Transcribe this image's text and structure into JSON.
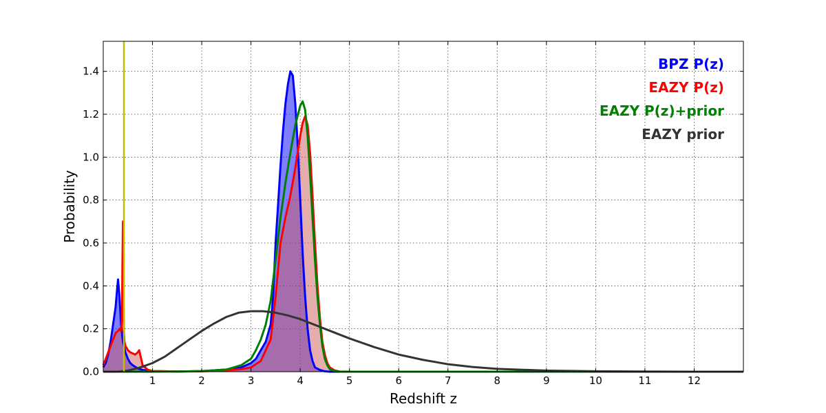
{
  "chart_data": {
    "type": "line",
    "xlabel": "Redshift z",
    "ylabel": "Probability",
    "xlim": [
      0,
      13
    ],
    "ylim": [
      0,
      1.54
    ],
    "grid": true,
    "legend_placement": "top-right",
    "xticks": [
      1,
      2,
      3,
      4,
      5,
      6,
      7,
      8,
      9,
      10,
      11,
      12
    ],
    "xtick_labels": [
      "1",
      "2",
      "3",
      "4",
      "5",
      "6",
      "7",
      "8",
      "9",
      "10",
      "11",
      "12"
    ],
    "yticks": [
      0.0,
      0.2,
      0.4,
      0.6,
      0.8,
      1.0,
      1.2,
      1.4
    ],
    "ytick_labels": [
      "0.0",
      "0.2",
      "0.4",
      "0.6",
      "0.8",
      "1.0",
      "1.2",
      "1.4"
    ],
    "vertical_line": {
      "x": 0.42,
      "color": "#bfbf00"
    },
    "series": [
      {
        "name": "BPZ P(z)",
        "color": "#0000ff",
        "fill": "#0000ff",
        "fill_opacity": 0.5,
        "x": [
          0.0,
          0.05,
          0.1,
          0.15,
          0.2,
          0.25,
          0.28,
          0.3,
          0.33,
          0.36,
          0.4,
          0.45,
          0.5,
          0.55,
          0.6,
          0.7,
          0.8,
          1.0,
          1.5,
          2.0,
          2.5,
          2.8,
          3.0,
          3.1,
          3.2,
          3.3,
          3.4,
          3.45,
          3.5,
          3.55,
          3.6,
          3.65,
          3.7,
          3.75,
          3.8,
          3.85,
          3.9,
          3.95,
          4.0,
          4.05,
          4.1,
          4.15,
          4.2,
          4.25,
          4.3,
          4.4,
          4.5,
          4.6,
          4.8,
          5.0,
          8.0,
          13.0
        ],
        "y": [
          0.02,
          0.04,
          0.08,
          0.14,
          0.22,
          0.3,
          0.38,
          0.43,
          0.35,
          0.22,
          0.14,
          0.09,
          0.06,
          0.04,
          0.03,
          0.015,
          0.008,
          0.003,
          0.001,
          0.003,
          0.01,
          0.02,
          0.04,
          0.06,
          0.1,
          0.14,
          0.22,
          0.35,
          0.6,
          0.78,
          0.96,
          1.12,
          1.25,
          1.34,
          1.4,
          1.38,
          1.25,
          1.05,
          0.8,
          0.55,
          0.35,
          0.2,
          0.1,
          0.05,
          0.02,
          0.008,
          0.002,
          0.0,
          0.0,
          0.0,
          0.0,
          0.0
        ]
      },
      {
        "name": "EAZY P(z)",
        "color": "#ff0000",
        "fill": "#cd5c5c",
        "fill_opacity": 0.5,
        "x": [
          0.0,
          0.05,
          0.1,
          0.15,
          0.2,
          0.25,
          0.3,
          0.33,
          0.36,
          0.38,
          0.39,
          0.4,
          0.41,
          0.42,
          0.43,
          0.45,
          0.5,
          0.55,
          0.6,
          0.65,
          0.7,
          0.73,
          0.76,
          0.8,
          0.9,
          1.0,
          1.5,
          2.0,
          2.5,
          2.8,
          3.0,
          3.2,
          3.4,
          3.5,
          3.6,
          3.7,
          3.8,
          3.9,
          4.0,
          4.05,
          4.1,
          4.15,
          4.2,
          4.25,
          4.3,
          4.35,
          4.4,
          4.45,
          4.5,
          4.55,
          4.6,
          4.7,
          4.8,
          5.0,
          13.0
        ],
        "y": [
          0.03,
          0.06,
          0.09,
          0.12,
          0.15,
          0.18,
          0.19,
          0.2,
          0.19,
          0.25,
          0.5,
          0.7,
          0.4,
          0.18,
          0.14,
          0.12,
          0.1,
          0.09,
          0.085,
          0.08,
          0.09,
          0.1,
          0.07,
          0.03,
          0.01,
          0.003,
          0.001,
          0.002,
          0.006,
          0.012,
          0.02,
          0.05,
          0.15,
          0.35,
          0.6,
          0.72,
          0.82,
          0.95,
          1.1,
          1.16,
          1.19,
          1.15,
          1.02,
          0.82,
          0.6,
          0.4,
          0.25,
          0.14,
          0.08,
          0.04,
          0.02,
          0.006,
          0.001,
          0.0,
          0.0
        ]
      },
      {
        "name": "EAZY P(z)+prior",
        "color": "#008000",
        "x": [
          0.0,
          1.0,
          1.5,
          2.0,
          2.5,
          2.8,
          3.0,
          3.1,
          3.2,
          3.3,
          3.4,
          3.5,
          3.6,
          3.7,
          3.8,
          3.9,
          4.0,
          4.05,
          4.1,
          4.15,
          4.2,
          4.25,
          4.3,
          4.35,
          4.4,
          4.45,
          4.5,
          4.55,
          4.6,
          4.7,
          4.8,
          5.0,
          13.0
        ],
        "y": [
          0.0,
          0.0,
          0.001,
          0.003,
          0.01,
          0.03,
          0.06,
          0.1,
          0.15,
          0.22,
          0.33,
          0.52,
          0.72,
          0.88,
          1.02,
          1.15,
          1.24,
          1.26,
          1.22,
          1.1,
          0.92,
          0.72,
          0.52,
          0.35,
          0.22,
          0.12,
          0.06,
          0.03,
          0.012,
          0.003,
          0.0,
          0.0,
          0.0
        ]
      },
      {
        "name": "EAZY prior",
        "color": "#333333",
        "x": [
          0.0,
          0.3,
          0.5,
          0.75,
          1.0,
          1.25,
          1.5,
          1.75,
          2.0,
          2.25,
          2.5,
          2.75,
          3.0,
          3.25,
          3.5,
          3.75,
          4.0,
          4.5,
          5.0,
          5.5,
          6.0,
          6.5,
          7.0,
          7.5,
          8.0,
          9.0,
          10.0,
          11.0,
          12.0,
          13.0
        ],
        "y": [
          0.0,
          0.0,
          0.005,
          0.02,
          0.04,
          0.07,
          0.11,
          0.15,
          0.19,
          0.225,
          0.255,
          0.275,
          0.282,
          0.282,
          0.275,
          0.262,
          0.245,
          0.2,
          0.155,
          0.115,
          0.08,
          0.055,
          0.035,
          0.022,
          0.013,
          0.005,
          0.002,
          0.001,
          0.0,
          0.0
        ]
      }
    ]
  }
}
